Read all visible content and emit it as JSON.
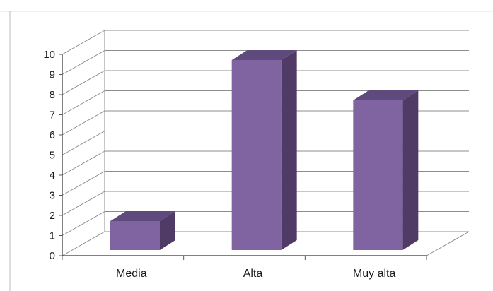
{
  "chart_data": {
    "type": "bar",
    "style": "3d-column",
    "categories": [
      "Media",
      "Alta",
      "Muy alta"
    ],
    "values": [
      2,
      10,
      8
    ],
    "ylim": [
      0,
      10
    ],
    "yticks": [
      "0",
      "1",
      "2",
      "3",
      "4",
      "5",
      "6",
      "7",
      "8",
      "9",
      "10"
    ],
    "grid": true,
    "legend": "none",
    "colors": {
      "bar_front": "#8064a2",
      "bar_side": "#4f3b66",
      "bar_top": "#5f4a7d",
      "grid": "#8c8c8c",
      "axis": "#595959",
      "frame": "#cfcfcf"
    }
  }
}
